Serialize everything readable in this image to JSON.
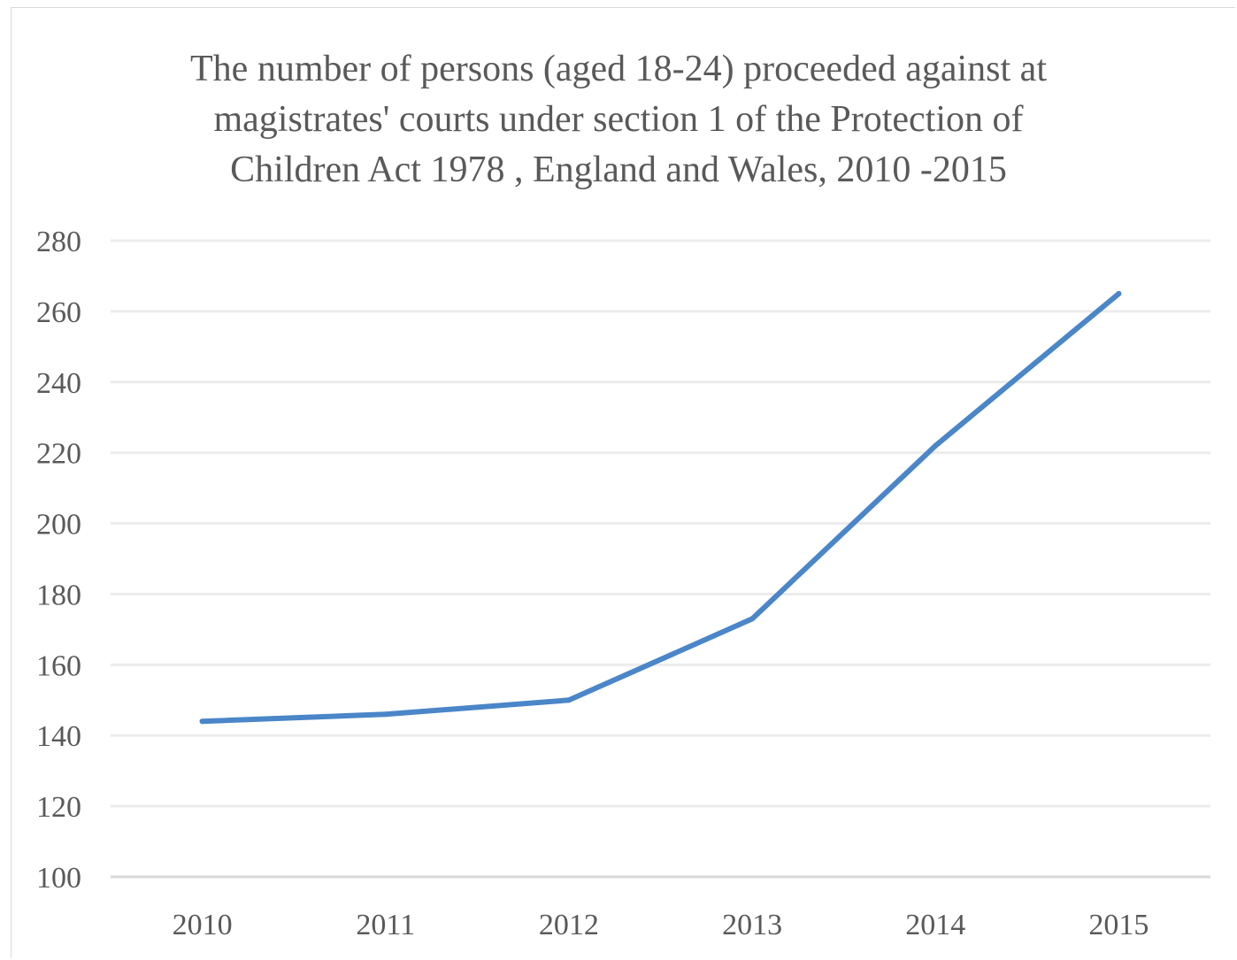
{
  "chart_data": {
    "type": "line",
    "title_lines": [
      "The number of persons (aged 18-24) proceeded against at",
      "magistrates' courts under section 1 of the Protection of",
      "Children Act 1978 , England and Wales, 2010 -2015"
    ],
    "categories": [
      "2010",
      "2011",
      "2012",
      "2013",
      "2014",
      "2015"
    ],
    "series": [
      {
        "values": [
          144,
          146,
          150,
          173,
          222,
          265
        ],
        "color": "#4a86c8"
      }
    ],
    "ylim": [
      100,
      280
    ],
    "yticks": [
      100,
      120,
      140,
      160,
      180,
      200,
      220,
      240,
      260,
      280
    ],
    "grid": true,
    "legend": "none"
  }
}
